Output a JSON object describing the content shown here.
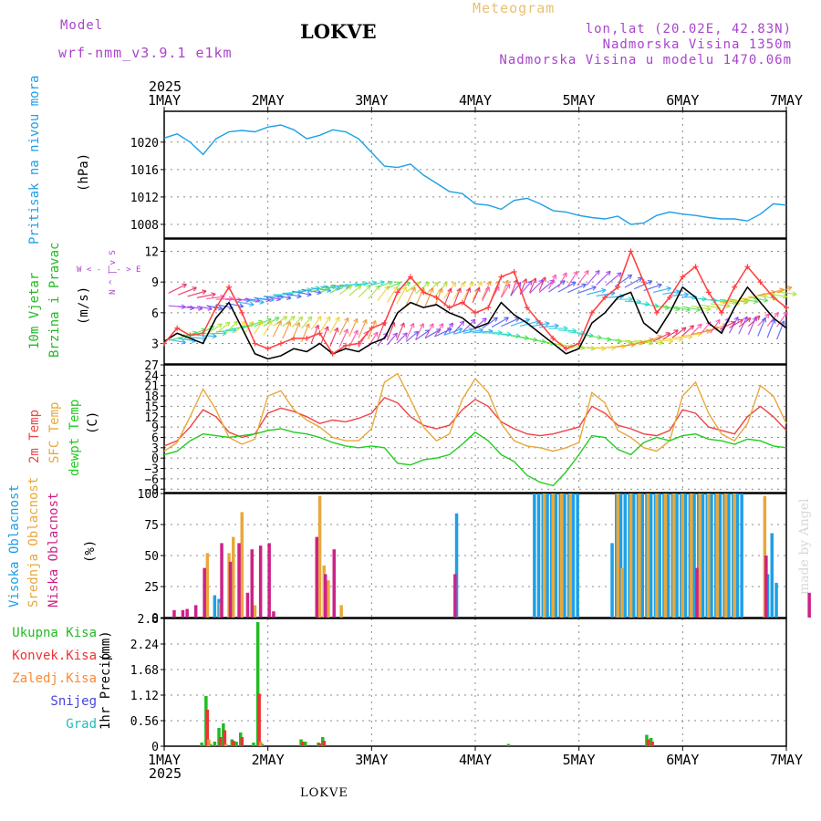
{
  "header": {
    "model_label": "Model",
    "model_name": "wrf-nmm_v3.9.1 e1km",
    "station": "LOKVE",
    "product": "Meteogram",
    "location": "lon,lat (20.02E, 42.83N)",
    "elevation": "Nadmorska Visina 1350m",
    "model_elevation": "Nadmorska Visina u modelu 1470.06m",
    "credit": "made by Angel",
    "footer": "LOKVE"
  },
  "colors": {
    "pressure": "#1ea0e6",
    "wind_gust": "#ff4040",
    "wind_speed": "#000000",
    "temp_2m": "#ee4444",
    "temp_sfc": "#e8a83c",
    "dewpoint": "#22cc22",
    "cloud_high": "#1ea0e6",
    "cloud_mid": "#e8a83c",
    "cloud_low": "#cc2288",
    "precip_total": "#22bb22",
    "precip_conv": "#ee3333",
    "precip_strat": "#ff8833",
    "snow": "#4444dd",
    "hail": "#22bbbb",
    "header_purple": "#aa44cc",
    "header_orange": "#e8c070"
  },
  "chart_data": [
    {
      "id": "pressure",
      "type": "line",
      "axis_title": [
        "Pritisak na nivou mora"
      ],
      "unit": "(hPa)",
      "ylim": [
        1006,
        1024.5
      ],
      "yticks": [
        1008,
        1012,
        1016,
        1020
      ],
      "x": [
        0,
        3,
        6,
        9,
        12,
        15,
        18,
        21,
        24,
        27,
        30,
        33,
        36,
        39,
        42,
        45,
        48,
        51,
        54,
        57,
        60,
        63,
        66,
        69,
        72,
        75,
        78,
        81,
        84,
        87,
        90,
        93,
        96,
        99,
        102,
        105,
        108,
        111,
        114,
        117,
        120,
        123,
        126,
        129,
        132,
        135,
        138,
        141,
        144
      ],
      "series": [
        {
          "values": [
            1020.6,
            1021.2,
            1020.0,
            1018.2,
            1020.5,
            1021.5,
            1021.7,
            1021.5,
            1022.2,
            1022.5,
            1021.8,
            1020.5,
            1021.0,
            1021.8,
            1021.5,
            1020.5,
            1018.5,
            1016.5,
            1016.3,
            1016.8,
            1015.2,
            1014.0,
            1012.8,
            1012.5,
            1011.0,
            1010.8,
            1010.2,
            1011.5,
            1011.8,
            1011.0,
            1010.0,
            1009.8,
            1009.3,
            1009.0,
            1008.8,
            1009.2,
            1008.0,
            1008.2,
            1009.3,
            1009.8,
            1009.5,
            1009.3,
            1009.0,
            1008.8,
            1008.8,
            1008.5,
            1009.5,
            1011.0,
            1010.8
          ]
        }
      ],
      "grid": true
    },
    {
      "id": "wind",
      "type": "line",
      "axis_title": [
        "10m Vjetar",
        "Brzina i Pravac"
      ],
      "unit": "(m/s)",
      "compass": [
        "W",
        "<",
        "-",
        "|",
        "-",
        ">",
        "E"
      ],
      "compass_ns": [
        "N",
        "^",
        "|",
        "v",
        "S"
      ],
      "ylim": [
        1,
        13.2
      ],
      "yticks": [
        3,
        6,
        9,
        12
      ],
      "x": [
        0,
        3,
        6,
        9,
        12,
        15,
        18,
        21,
        24,
        27,
        30,
        33,
        36,
        39,
        42,
        45,
        48,
        51,
        54,
        57,
        60,
        63,
        66,
        69,
        72,
        75,
        78,
        81,
        84,
        87,
        90,
        93,
        96,
        99,
        102,
        105,
        108,
        111,
        114,
        117,
        120,
        123,
        126,
        129,
        132,
        135,
        138,
        141,
        144
      ],
      "series": [
        {
          "name": "speed",
          "values": [
            3.2,
            4.0,
            3.5,
            3.0,
            5.5,
            7.0,
            4.5,
            2.0,
            1.5,
            1.8,
            2.5,
            2.2,
            3.0,
            2.0,
            2.5,
            2.2,
            3.0,
            3.5,
            6.0,
            7.0,
            6.5,
            6.8,
            6.0,
            5.5,
            4.5,
            5.0,
            7.0,
            5.8,
            5.0,
            4.0,
            3.0,
            2.0,
            2.5,
            5.0,
            6.0,
            7.5,
            8.0,
            5.0,
            4.0,
            6.0,
            8.5,
            7.5,
            5.0,
            4.0,
            6.5,
            8.5,
            7.0,
            5.5,
            4.5
          ]
        },
        {
          "name": "gust",
          "values": [
            3.0,
            4.5,
            3.8,
            4.0,
            6.5,
            8.5,
            6.0,
            3.0,
            2.5,
            3.0,
            3.5,
            3.5,
            4.0,
            2.0,
            2.8,
            3.0,
            4.5,
            5.0,
            8.0,
            9.5,
            8.0,
            7.5,
            6.5,
            7.0,
            6.0,
            6.5,
            9.5,
            10.0,
            6.5,
            5.0,
            3.5,
            2.5,
            3.0,
            6.0,
            7.5,
            8.5,
            12.0,
            9.0,
            6.0,
            7.5,
            9.5,
            10.5,
            8.0,
            6.0,
            8.5,
            10.5,
            9.0,
            7.5,
            6.5
          ]
        }
      ],
      "grid": true
    },
    {
      "id": "temperature",
      "type": "line",
      "axis_title": [
        "2m Temp",
        "SFC Temp",
        "dewpt Temp"
      ],
      "unit": "(C)",
      "ylim": [
        -10,
        27
      ],
      "yticks": [
        -9,
        -6,
        -3,
        0,
        3,
        6,
        9,
        12,
        15,
        18,
        21,
        24,
        27
      ],
      "x": [
        0,
        3,
        6,
        9,
        12,
        15,
        18,
        21,
        24,
        27,
        30,
        33,
        36,
        39,
        42,
        45,
        48,
        51,
        54,
        57,
        60,
        63,
        66,
        69,
        72,
        75,
        78,
        81,
        84,
        87,
        90,
        93,
        96,
        99,
        102,
        105,
        108,
        111,
        114,
        117,
        120,
        123,
        126,
        129,
        132,
        135,
        138,
        141,
        144
      ],
      "series": [
        {
          "name": "2m Temp",
          "values": [
            3.5,
            5.0,
            9.0,
            14.0,
            12.0,
            7.5,
            6.0,
            7.0,
            13.0,
            14.5,
            13.5,
            12.0,
            10.0,
            11.0,
            10.5,
            11.5,
            13.0,
            17.5,
            16.0,
            12.0,
            9.5,
            8.5,
            9.5,
            14.0,
            17.0,
            15.0,
            10.5,
            8.5,
            7.0,
            6.5,
            7.0,
            8.0,
            9.0,
            15.0,
            13.0,
            9.5,
            8.5,
            7.0,
            6.5,
            8.0,
            14.0,
            13.0,
            9.0,
            8.0,
            7.0,
            12.0,
            15.0,
            12.0,
            8.0
          ]
        },
        {
          "name": "SFC Temp",
          "values": [
            2.0,
            4.5,
            12.0,
            20.0,
            14.0,
            6.0,
            4.0,
            5.5,
            18.0,
            19.5,
            14.0,
            11.0,
            9.0,
            6.0,
            5.0,
            5.0,
            8.5,
            22.0,
            24.5,
            17.0,
            9.0,
            5.0,
            7.0,
            17.0,
            23.0,
            19.0,
            10.0,
            5.0,
            3.5,
            3.0,
            2.0,
            3.0,
            4.5,
            19.0,
            16.0,
            8.0,
            6.0,
            3.0,
            2.0,
            5.0,
            18.0,
            22.0,
            13.0,
            7.0,
            5.0,
            10.0,
            21.0,
            18.0,
            10.0
          ]
        },
        {
          "name": "dewpt Temp",
          "values": [
            1.0,
            2.0,
            5.0,
            7.0,
            6.5,
            6.0,
            6.5,
            7.0,
            8.0,
            8.5,
            7.5,
            7.0,
            6.0,
            4.5,
            3.5,
            3.0,
            3.5,
            3.0,
            -1.5,
            -2.0,
            -0.5,
            0.0,
            1.0,
            4.0,
            7.5,
            5.0,
            1.0,
            -1.0,
            -5.0,
            -7.0,
            -8.0,
            -4.0,
            1.0,
            6.5,
            6.0,
            2.5,
            1.0,
            4.5,
            6.0,
            5.0,
            6.5,
            7.0,
            5.5,
            5.0,
            4.0,
            5.5,
            5.0,
            3.5,
            3.0
          ]
        }
      ],
      "grid": true
    },
    {
      "id": "clouds",
      "type": "bar",
      "axis_title": [
        "Visoka Oblacnost",
        "Srednja Oblacnost",
        "Niska Oblacnost"
      ],
      "unit": "(%)",
      "ylim": [
        0,
        100
      ],
      "yticks": [
        0,
        25,
        50,
        75,
        100
      ],
      "series": [
        {
          "name": "Visoka Oblacnost",
          "x": [
            12,
            13,
            36,
            38,
            68,
            86,
            87,
            88,
            89,
            90,
            91,
            92,
            93,
            94,
            95,
            96,
            104,
            105,
            106,
            107,
            108,
            109,
            110,
            111,
            112,
            113,
            114,
            115,
            116,
            117,
            118,
            119,
            120,
            121,
            122,
            123,
            124,
            125,
            126,
            127,
            128,
            129,
            130,
            131,
            132,
            133,
            134,
            140,
            141,
            142
          ],
          "values": [
            18,
            15,
            28,
            22,
            84,
            100,
            100,
            100,
            100,
            100,
            100,
            100,
            100,
            100,
            100,
            100,
            60,
            100,
            100,
            100,
            100,
            100,
            100,
            100,
            100,
            100,
            100,
            100,
            100,
            100,
            100,
            100,
            100,
            100,
            100,
            100,
            100,
            100,
            100,
            100,
            100,
            100,
            100,
            100,
            100,
            100,
            100,
            35,
            68,
            28
          ]
        },
        {
          "name": "Srednja Oblacnost",
          "x": [
            10,
            13,
            15,
            16,
            18,
            21,
            36,
            37,
            38,
            41,
            88,
            90,
            92,
            94,
            105,
            106,
            108,
            110,
            112,
            114,
            116,
            118,
            120,
            122,
            124,
            126,
            128,
            130,
            132,
            139
          ],
          "values": [
            52,
            12,
            52,
            65,
            85,
            10,
            98,
            42,
            30,
            10,
            100,
            100,
            100,
            100,
            100,
            40,
            100,
            100,
            100,
            100,
            100,
            100,
            100,
            100,
            100,
            100,
            100,
            100,
            100,
            98
          ]
        },
        {
          "name": "Niska Oblacnost",
          "x": [
            2,
            4,
            5,
            7,
            9,
            13,
            15,
            17,
            19,
            20,
            22,
            24,
            25,
            35,
            37,
            39,
            67,
            123,
            139,
            149
          ],
          "values": [
            6,
            6,
            7,
            10,
            40,
            60,
            45,
            60,
            20,
            55,
            58,
            60,
            5,
            65,
            35,
            55,
            35,
            40,
            50,
            20
          ]
        }
      ],
      "grid": true
    },
    {
      "id": "precipitation",
      "type": "bar",
      "axis_title": [
        "1hr Precip"
      ],
      "unit": "(mm)",
      "legend": [
        "Ukupna Kisa",
        "Konvek.Kisa",
        "Zaledj.Kisa",
        "Snijeg",
        "Grad"
      ],
      "ylim": [
        0,
        2.8
      ],
      "yticks": [
        0,
        0.56,
        1.12,
        1.68,
        2.24,
        2.8
      ],
      "series": [
        {
          "name": "Ukupna Kisa",
          "x": [
            9,
            10,
            11,
            12,
            13,
            14,
            16,
            17,
            18,
            21,
            22,
            23,
            32,
            33,
            36,
            37,
            80,
            112,
            113
          ],
          "values": [
            0.08,
            1.1,
            0.05,
            0.1,
            0.4,
            0.5,
            0.15,
            0.1,
            0.3,
            0.08,
            2.72,
            0.05,
            0.15,
            0.1,
            0.08,
            0.2,
            0.05,
            0.25,
            0.18
          ]
        },
        {
          "name": "Konvek.Kisa",
          "x": [
            10,
            13,
            14,
            16,
            18,
            22,
            32,
            36,
            37,
            112,
            113
          ],
          "values": [
            0.8,
            0.2,
            0.35,
            0.12,
            0.2,
            1.15,
            0.1,
            0.06,
            0.12,
            0.15,
            0.1
          ]
        },
        {
          "name": "Zaledj.Kisa",
          "x": [
            10,
            14,
            22
          ],
          "values": [
            0.15,
            0.05,
            0.1
          ]
        }
      ],
      "grid": true
    }
  ],
  "time_axis": {
    "year": "2025",
    "days": [
      "1MAY",
      "2MAY",
      "3MAY",
      "4MAY",
      "5MAY",
      "6MAY",
      "7MAY"
    ],
    "hours_per_day": 24,
    "total_hours": 144
  }
}
